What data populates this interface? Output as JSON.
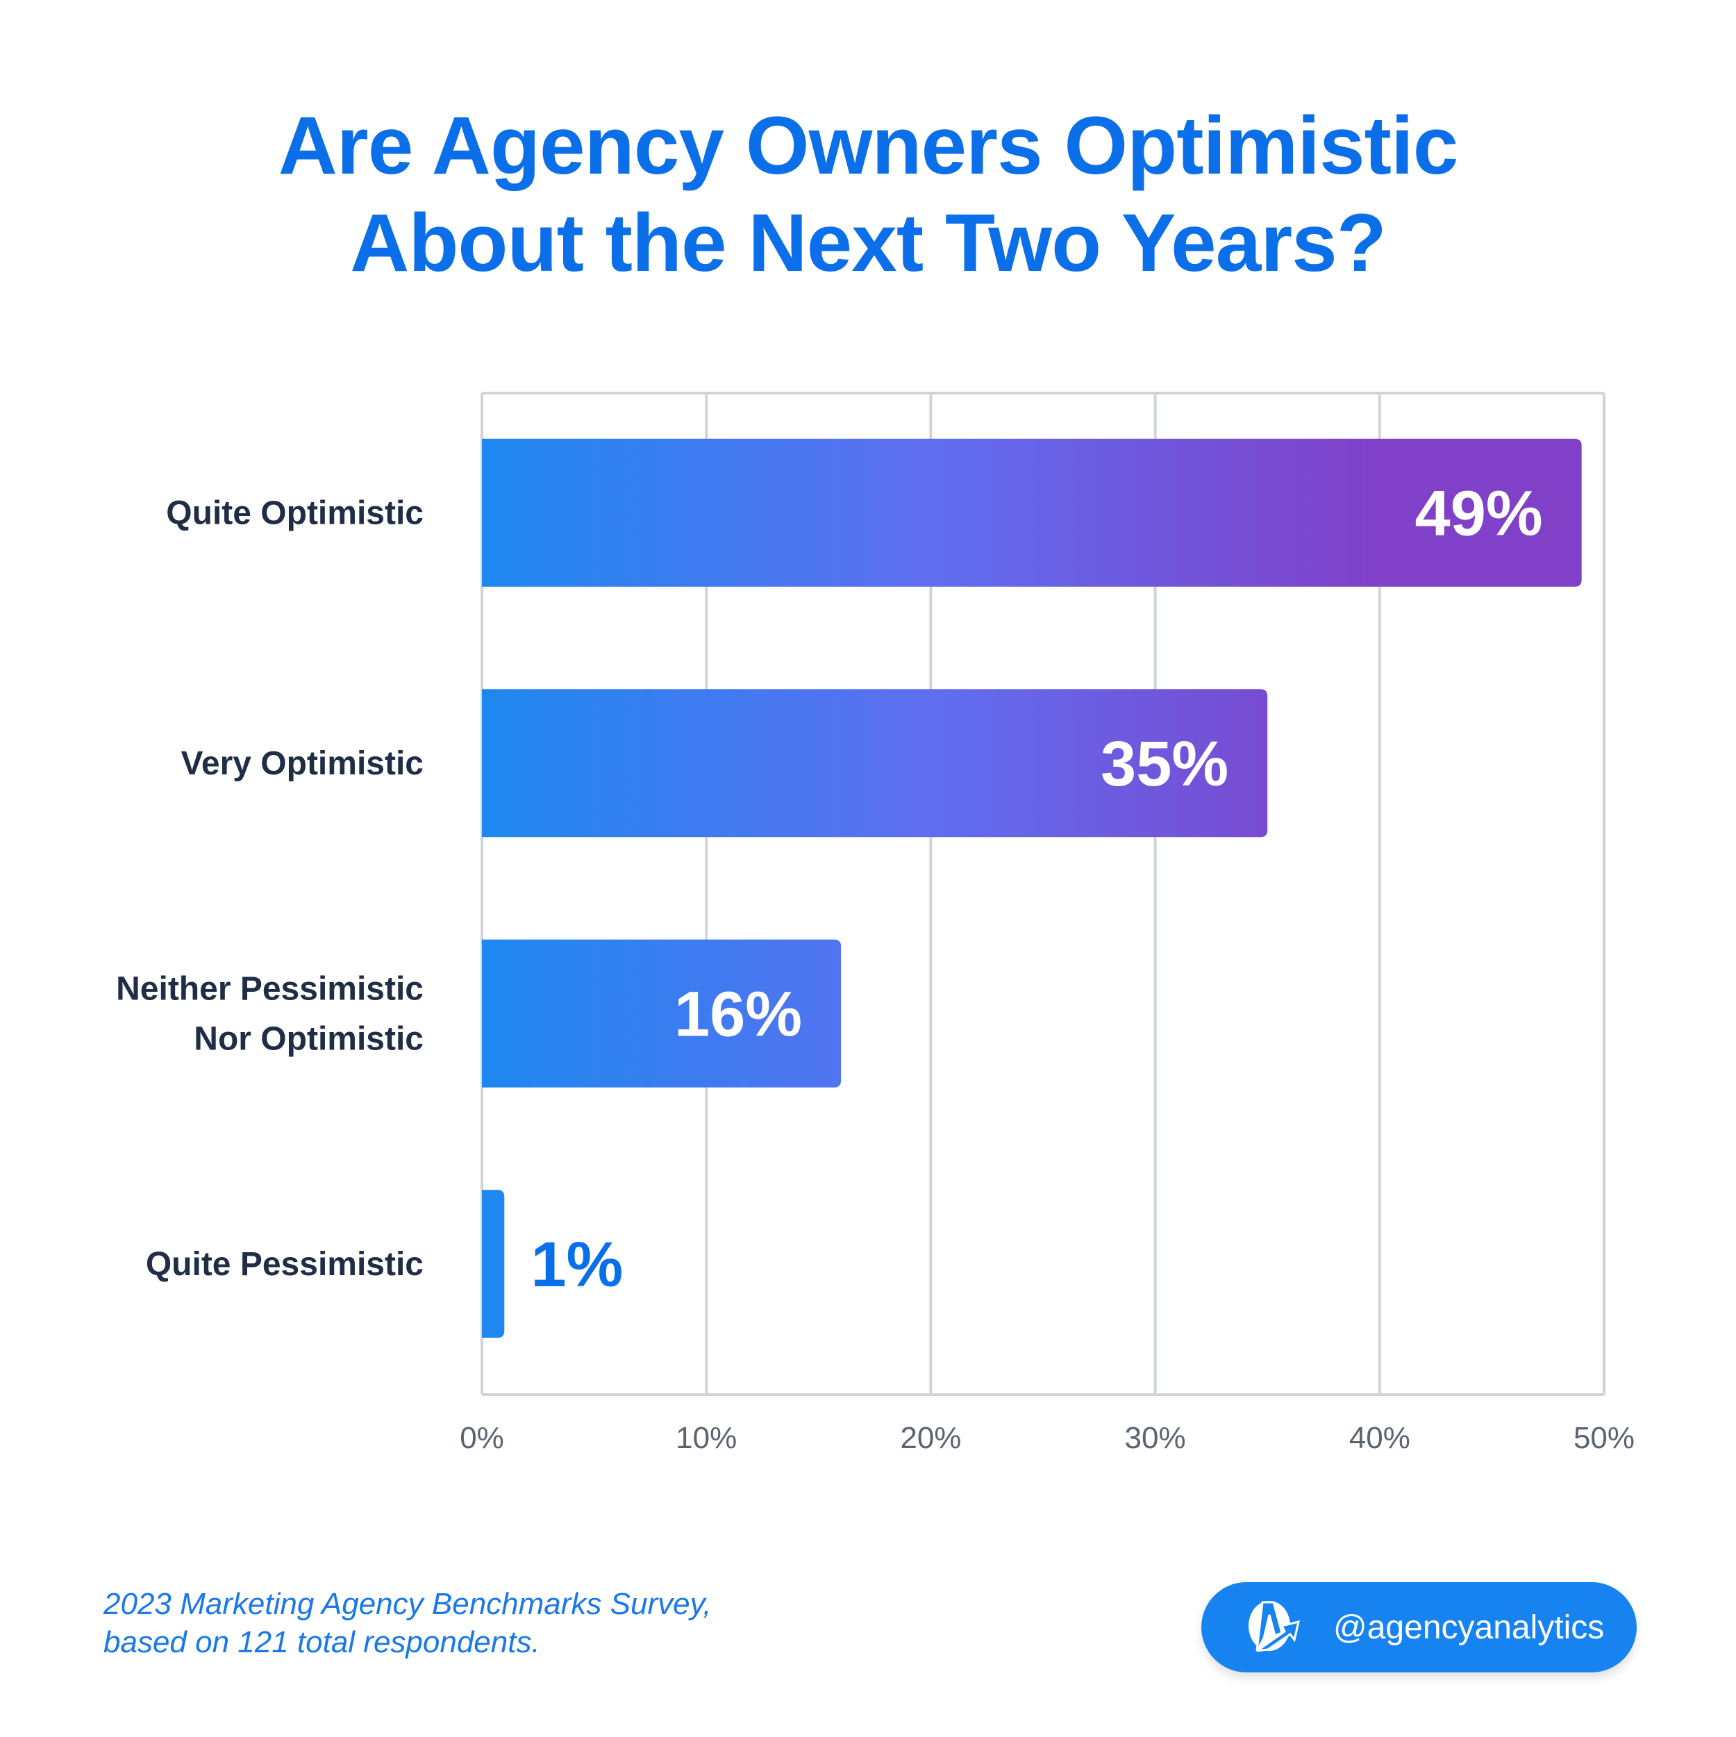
{
  "chart_data": {
    "type": "bar",
    "orientation": "horizontal",
    "title": "Are Agency Owners Optimistic About the Next Two Years?",
    "title_lines": [
      "Are Agency Owners Optimistic",
      "About the Next Two Years?"
    ],
    "categories": [
      "Quite Optimistic",
      "Very Optimistic",
      "Neither Pessimistic Nor Optimistic",
      "Quite Pessimistic"
    ],
    "category_lines": [
      [
        "Quite Optimistic"
      ],
      [
        "Very Optimistic"
      ],
      [
        "Neither Pessimistic",
        "Nor Optimistic"
      ],
      [
        "Quite Pessimistic"
      ]
    ],
    "values": [
      49,
      35,
      16,
      1
    ],
    "data_labels": [
      "49%",
      "35%",
      "16%",
      "1%"
    ],
    "xlim": [
      0,
      50
    ],
    "xticks": [
      0,
      10,
      20,
      30,
      40,
      50
    ],
    "xtick_labels": [
      "0%",
      "10%",
      "20%",
      "30%",
      "40%",
      "50%"
    ],
    "grid": true,
    "colors": {
      "gradient_start": "#1e88f0",
      "gradient_mid": "#5f6ef0",
      "gradient_end": "#8040c8",
      "title": "#0a6fe8",
      "label": "#1f2d45",
      "grid": "#d0d4d9"
    }
  },
  "footnote": {
    "line1": "2023 Marketing Agency Benchmarks Survey,",
    "line2": "based on 121 total respondents."
  },
  "badge": {
    "handle": "@agencyanalytics",
    "icon": "agencyanalytics-logo-icon"
  }
}
